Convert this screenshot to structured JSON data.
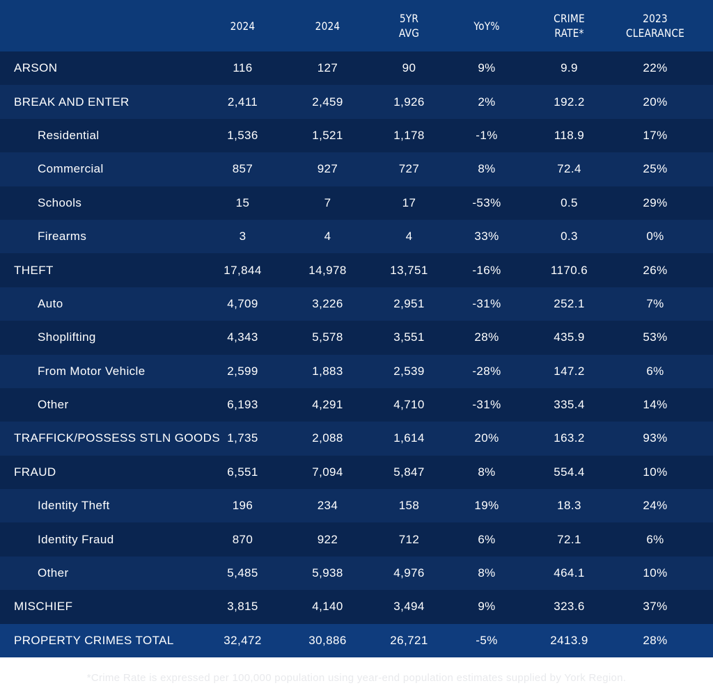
{
  "columns": [
    {
      "line1": "",
      "line2": ""
    },
    {
      "line1": "2024",
      "line2": ""
    },
    {
      "line1": "2024",
      "line2": ""
    },
    {
      "line1": "5YR",
      "line2": "AVG"
    },
    {
      "line1": "YoY%",
      "line2": ""
    },
    {
      "line1": "CRIME",
      "line2": "RATE*"
    },
    {
      "line1": "2023",
      "line2": "CLEARANCE"
    }
  ],
  "rows": [
    {
      "name": "ARSON",
      "sub": false,
      "v": [
        "116",
        "127",
        "90",
        "9%",
        "9.9",
        "22%"
      ]
    },
    {
      "name": "BREAK AND ENTER",
      "sub": false,
      "v": [
        "2,411",
        "2,459",
        "1,926",
        "2%",
        "192.2",
        "20%"
      ]
    },
    {
      "name": "Residential",
      "sub": true,
      "v": [
        "1,536",
        "1,521",
        "1,178",
        "-1%",
        "118.9",
        "17%"
      ]
    },
    {
      "name": "Commercial",
      "sub": true,
      "v": [
        "857",
        "927",
        "727",
        "8%",
        "72.4",
        "25%"
      ]
    },
    {
      "name": "Schools",
      "sub": true,
      "v": [
        "15",
        "7",
        "17",
        "-53%",
        "0.5",
        "29%"
      ]
    },
    {
      "name": "Firearms",
      "sub": true,
      "v": [
        "3",
        "4",
        "4",
        "33%",
        "0.3",
        "0%"
      ]
    },
    {
      "name": "THEFT",
      "sub": false,
      "v": [
        "17,844",
        "14,978",
        "13,751",
        "-16%",
        "1170.6",
        "26%"
      ]
    },
    {
      "name": "Auto",
      "sub": true,
      "v": [
        "4,709",
        "3,226",
        "2,951",
        "-31%",
        "252.1",
        "7%"
      ]
    },
    {
      "name": "Shoplifting",
      "sub": true,
      "v": [
        "4,343",
        "5,578",
        "3,551",
        "28%",
        "435.9",
        "53%"
      ]
    },
    {
      "name": "From Motor Vehicle",
      "sub": true,
      "v": [
        "2,599",
        "1,883",
        "2,539",
        "-28%",
        "147.2",
        "6%"
      ]
    },
    {
      "name": "Other",
      "sub": true,
      "v": [
        "6,193",
        "4,291",
        "4,710",
        "-31%",
        "335.4",
        "14%"
      ]
    },
    {
      "name": "TRAFFICK/POSSESS STLN GOODS",
      "sub": false,
      "v": [
        "1,735",
        "2,088",
        "1,614",
        "20%",
        "163.2",
        "93%"
      ]
    },
    {
      "name": "FRAUD",
      "sub": false,
      "v": [
        "6,551",
        "7,094",
        "5,847",
        "8%",
        "554.4",
        "10%"
      ]
    },
    {
      "name": "Identity Theft",
      "sub": true,
      "v": [
        "196",
        "234",
        "158",
        "19%",
        "18.3",
        "24%"
      ]
    },
    {
      "name": "Identity Fraud",
      "sub": true,
      "v": [
        "870",
        "922",
        "712",
        "6%",
        "72.1",
        "6%"
      ]
    },
    {
      "name": "Other",
      "sub": true,
      "v": [
        "5,485",
        "5,938",
        "4,976",
        "8%",
        "464.1",
        "10%"
      ]
    },
    {
      "name": "MISCHIEF",
      "sub": false,
      "v": [
        "3,815",
        "4,140",
        "3,494",
        "9%",
        "323.6",
        "37%"
      ]
    }
  ],
  "total": {
    "name": "PROPERTY CRIMES TOTAL",
    "v": [
      "32,472",
      "30,886",
      "26,721",
      "-5%",
      "2413.9",
      "28%"
    ]
  },
  "footnote": "*Crime Rate is expressed per 100,000 population using year-end population estimates supplied by York Region.",
  "colors": {
    "header": "#0d3a78",
    "row_dark": "#0a2550",
    "row_light": "#0e2e60",
    "total": "#0f3c7d"
  }
}
